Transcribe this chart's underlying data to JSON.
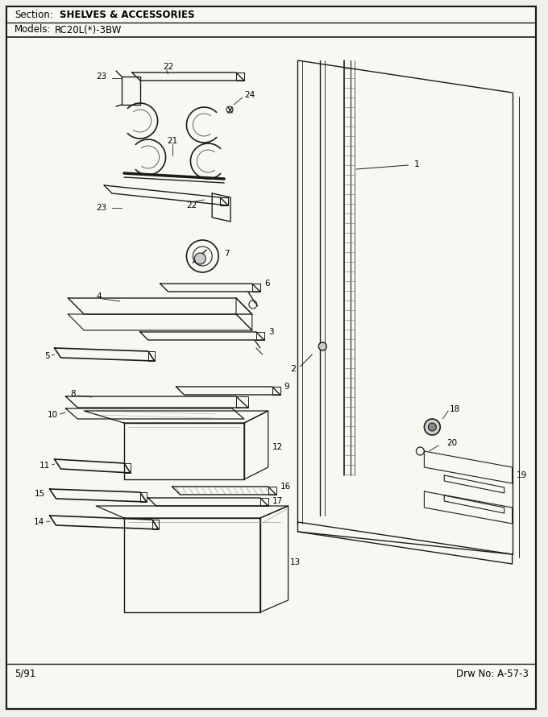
{
  "title_section": "Section:",
  "title_section_bold": "SHELVES & ACCESSORIES",
  "title_models": "Models:",
  "title_models_val": "RC20L(*)-3BW",
  "footer_left": "5/91",
  "footer_right": "Drw No: A-57-3",
  "bg_color": "#f5f5f0",
  "border_color": "#000000",
  "fig_width": 6.8,
  "fig_height": 8.9
}
